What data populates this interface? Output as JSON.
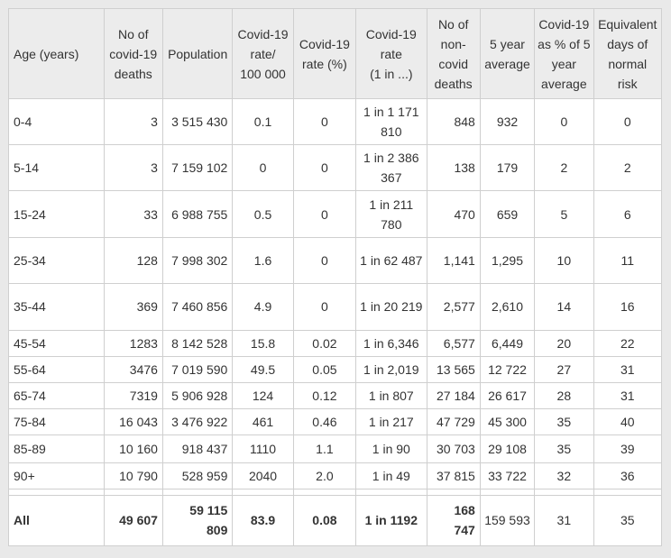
{
  "headers": [
    "Age (years)",
    "No of\ncovid-19\ndeaths",
    "Population",
    "Covid-19\nrate/\n100 000",
    "Covid-19\nrate (%)",
    "Covid-19\nrate\n(1 in ...)",
    "No of\nnon-\ncovid\ndeaths",
    "5 year\naverage",
    "Covid-19\nas % of 5\nyear\naverage",
    "Equivalent\ndays of\nnormal\nrisk"
  ],
  "rows": [
    {
      "age": "0-4",
      "deaths": "3",
      "population": "3 515 430",
      "rate100k": "0.1",
      "ratePct": "0",
      "oneIn": "1 in 1 171 810",
      "nonCovid": "848",
      "avg5": "932",
      "pctAvg": "0",
      "days": "0"
    },
    {
      "age": "5-14",
      "deaths": "3",
      "population": "7 159 102",
      "rate100k": "0",
      "ratePct": "0",
      "oneIn": "1 in 2 386 367",
      "nonCovid": "138",
      "avg5": "179",
      "pctAvg": "2",
      "days": "2"
    },
    {
      "age": "15-24",
      "deaths": "33",
      "population": "6 988 755",
      "rate100k": "0.5",
      "ratePct": "0",
      "oneIn": "1 in 211 780",
      "nonCovid": "470",
      "avg5": "659",
      "pctAvg": "5",
      "days": "6"
    },
    {
      "age": "25-34",
      "deaths": "128",
      "population": "7 998 302",
      "rate100k": "1.6",
      "ratePct": "0",
      "oneIn": "1 in 62 487",
      "nonCovid": "1,141",
      "avg5": "1,295",
      "pctAvg": "10",
      "days": "11"
    },
    {
      "age": "35-44",
      "deaths": "369",
      "population": "7 460 856",
      "rate100k": "4.9",
      "ratePct": "0",
      "oneIn": "1 in 20 219",
      "nonCovid": "2,577",
      "avg5": "2,610",
      "pctAvg": "14",
      "days": "16"
    },
    {
      "age": "45-54",
      "deaths": "1283",
      "population": "8 142 528",
      "rate100k": "15.8",
      "ratePct": "0.02",
      "oneIn": "1 in 6,346",
      "nonCovid": "6,577",
      "avg5": "6,449",
      "pctAvg": "20",
      "days": "22"
    },
    {
      "age": "55-64",
      "deaths": "3476",
      "population": "7 019 590",
      "rate100k": "49.5",
      "ratePct": "0.05",
      "oneIn": "1 in 2,019",
      "nonCovid": "13 565",
      "avg5": "12 722",
      "pctAvg": "27",
      "days": "31"
    },
    {
      "age": "65-74",
      "deaths": "7319",
      "population": "5 906 928",
      "rate100k": "124",
      "ratePct": "0.12",
      "oneIn": "1 in 807",
      "nonCovid": "27 184",
      "avg5": "26 617",
      "pctAvg": "28",
      "days": "31"
    },
    {
      "age": "75-84",
      "deaths": "16 043",
      "population": "3 476 922",
      "rate100k": "461",
      "ratePct": "0.46",
      "oneIn": "1 in 217",
      "nonCovid": "47 729",
      "avg5": "45 300",
      "pctAvg": "35",
      "days": "40"
    },
    {
      "age": "85-89",
      "deaths": "10 160",
      "population": "918 437",
      "rate100k": "1110",
      "ratePct": "1.1",
      "oneIn": "1 in 90",
      "nonCovid": "30 703",
      "avg5": "29 108",
      "pctAvg": "35",
      "days": "39"
    },
    {
      "age": "90+",
      "deaths": "10 790",
      "population": "528 959",
      "rate100k": "2040",
      "ratePct": "2.0",
      "oneIn": "1 in 49",
      "nonCovid": "37 815",
      "avg5": "33 722",
      "pctAvg": "32",
      "days": "36"
    }
  ],
  "total": {
    "age": "All",
    "deaths": "49 607",
    "population": "59 115 809",
    "rate100k": "83.9",
    "ratePct": "0.08",
    "oneIn": "1 in 1192",
    "nonCovid": "168 747",
    "avg5": "159 593",
    "pctAvg": "31",
    "days": "35"
  }
}
